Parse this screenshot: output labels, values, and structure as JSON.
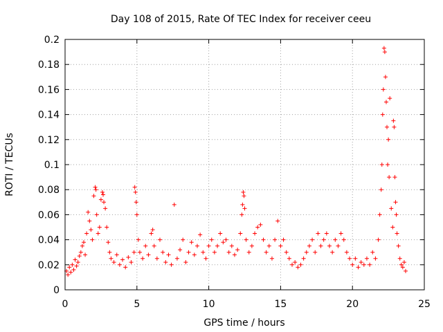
{
  "chart_data": {
    "type": "scatter",
    "title": "Day 108 of 2015, Rate Of TEC Index for receiver ceeu",
    "xlabel": "GPS time / hours",
    "ylabel": "ROTI / TECUs",
    "xlim": [
      0,
      25
    ],
    "ylim": [
      0,
      0.2
    ],
    "xticks": [
      0,
      5,
      10,
      15,
      20,
      25
    ],
    "yticks": [
      0,
      0.02,
      0.04,
      0.06,
      0.08,
      0.1,
      0.12,
      0.14,
      0.16,
      0.18,
      0.2
    ],
    "xtick_labels": [
      "0",
      "5",
      "10",
      "15",
      "20",
      "25"
    ],
    "ytick_labels": [
      "0",
      "0.02",
      "0.04",
      "0.06",
      "0.08",
      "0.1",
      "0.12",
      "0.14",
      "0.16",
      "0.18",
      "0.2"
    ],
    "grid": true,
    "marker": "+",
    "series_color": "#ff0000",
    "series": [
      {
        "name": "ROTI",
        "points": [
          [
            0.1,
            0.015
          ],
          [
            0.2,
            0.012
          ],
          [
            0.3,
            0.018
          ],
          [
            0.4,
            0.014
          ],
          [
            0.5,
            0.02
          ],
          [
            0.6,
            0.016
          ],
          [
            0.7,
            0.024
          ],
          [
            0.8,
            0.019
          ],
          [
            0.9,
            0.022
          ],
          [
            1.0,
            0.027
          ],
          [
            1.1,
            0.03
          ],
          [
            1.2,
            0.035
          ],
          [
            1.3,
            0.038
          ],
          [
            1.4,
            0.028
          ],
          [
            1.5,
            0.045
          ],
          [
            1.6,
            0.062
          ],
          [
            1.7,
            0.055
          ],
          [
            1.8,
            0.048
          ],
          [
            1.9,
            0.04
          ],
          [
            2.0,
            0.075
          ],
          [
            2.1,
            0.082
          ],
          [
            2.15,
            0.08
          ],
          [
            2.2,
            0.06
          ],
          [
            2.3,
            0.045
          ],
          [
            2.4,
            0.05
          ],
          [
            2.5,
            0.072
          ],
          [
            2.6,
            0.078
          ],
          [
            2.65,
            0.076
          ],
          [
            2.7,
            0.07
          ],
          [
            2.8,
            0.065
          ],
          [
            2.9,
            0.05
          ],
          [
            3.0,
            0.038
          ],
          [
            3.1,
            0.03
          ],
          [
            3.2,
            0.025
          ],
          [
            3.4,
            0.022
          ],
          [
            3.6,
            0.028
          ],
          [
            3.8,
            0.02
          ],
          [
            4.0,
            0.024
          ],
          [
            4.2,
            0.018
          ],
          [
            4.4,
            0.026
          ],
          [
            4.6,
            0.022
          ],
          [
            4.8,
            0.03
          ],
          [
            4.85,
            0.082
          ],
          [
            4.9,
            0.078
          ],
          [
            4.95,
            0.07
          ],
          [
            5.0,
            0.06
          ],
          [
            5.1,
            0.04
          ],
          [
            5.2,
            0.03
          ],
          [
            5.4,
            0.025
          ],
          [
            5.6,
            0.035
          ],
          [
            5.8,
            0.028
          ],
          [
            6.0,
            0.045
          ],
          [
            6.1,
            0.048
          ],
          [
            6.2,
            0.035
          ],
          [
            6.4,
            0.025
          ],
          [
            6.6,
            0.04
          ],
          [
            6.8,
            0.03
          ],
          [
            7.0,
            0.022
          ],
          [
            7.2,
            0.028
          ],
          [
            7.4,
            0.02
          ],
          [
            7.6,
            0.068
          ],
          [
            7.8,
            0.025
          ],
          [
            8.0,
            0.032
          ],
          [
            8.2,
            0.04
          ],
          [
            8.4,
            0.022
          ],
          [
            8.6,
            0.03
          ],
          [
            8.8,
            0.038
          ],
          [
            9.0,
            0.028
          ],
          [
            9.2,
            0.035
          ],
          [
            9.4,
            0.044
          ],
          [
            9.6,
            0.03
          ],
          [
            9.8,
            0.025
          ],
          [
            10.0,
            0.035
          ],
          [
            10.2,
            0.04
          ],
          [
            10.4,
            0.03
          ],
          [
            10.6,
            0.035
          ],
          [
            10.8,
            0.045
          ],
          [
            11.0,
            0.038
          ],
          [
            11.2,
            0.04
          ],
          [
            11.4,
            0.03
          ],
          [
            11.6,
            0.035
          ],
          [
            11.8,
            0.028
          ],
          [
            12.0,
            0.032
          ],
          [
            12.2,
            0.045
          ],
          [
            12.3,
            0.06
          ],
          [
            12.35,
            0.068
          ],
          [
            12.4,
            0.078
          ],
          [
            12.45,
            0.075
          ],
          [
            12.5,
            0.065
          ],
          [
            12.6,
            0.04
          ],
          [
            12.8,
            0.03
          ],
          [
            13.0,
            0.035
          ],
          [
            13.2,
            0.045
          ],
          [
            13.4,
            0.05
          ],
          [
            13.6,
            0.052
          ],
          [
            13.8,
            0.04
          ],
          [
            14.0,
            0.03
          ],
          [
            14.2,
            0.035
          ],
          [
            14.4,
            0.025
          ],
          [
            14.6,
            0.04
          ],
          [
            14.8,
            0.055
          ],
          [
            15.0,
            0.035
          ],
          [
            15.2,
            0.04
          ],
          [
            15.4,
            0.03
          ],
          [
            15.6,
            0.025
          ],
          [
            15.8,
            0.02
          ],
          [
            16.0,
            0.022
          ],
          [
            16.2,
            0.018
          ],
          [
            16.4,
            0.02
          ],
          [
            16.6,
            0.025
          ],
          [
            16.8,
            0.03
          ],
          [
            17.0,
            0.035
          ],
          [
            17.2,
            0.04
          ],
          [
            17.4,
            0.03
          ],
          [
            17.6,
            0.045
          ],
          [
            17.8,
            0.035
          ],
          [
            18.0,
            0.04
          ],
          [
            18.2,
            0.045
          ],
          [
            18.4,
            0.035
          ],
          [
            18.6,
            0.03
          ],
          [
            18.8,
            0.04
          ],
          [
            19.0,
            0.035
          ],
          [
            19.2,
            0.045
          ],
          [
            19.4,
            0.04
          ],
          [
            19.6,
            0.03
          ],
          [
            19.8,
            0.025
          ],
          [
            20.0,
            0.02
          ],
          [
            20.2,
            0.025
          ],
          [
            20.4,
            0.018
          ],
          [
            20.6,
            0.022
          ],
          [
            20.8,
            0.02
          ],
          [
            21.0,
            0.025
          ],
          [
            21.2,
            0.02
          ],
          [
            21.4,
            0.03
          ],
          [
            21.6,
            0.025
          ],
          [
            21.8,
            0.04
          ],
          [
            21.9,
            0.06
          ],
          [
            22.0,
            0.08
          ],
          [
            22.05,
            0.1
          ],
          [
            22.1,
            0.14
          ],
          [
            22.15,
            0.16
          ],
          [
            22.2,
            0.193
          ],
          [
            22.25,
            0.19
          ],
          [
            22.3,
            0.17
          ],
          [
            22.35,
            0.15
          ],
          [
            22.4,
            0.13
          ],
          [
            22.45,
            0.1
          ],
          [
            22.5,
            0.12
          ],
          [
            22.55,
            0.09
          ],
          [
            22.6,
            0.153
          ],
          [
            22.7,
            0.065
          ],
          [
            22.8,
            0.05
          ],
          [
            22.85,
            0.135
          ],
          [
            22.9,
            0.13
          ],
          [
            22.95,
            0.09
          ],
          [
            23.0,
            0.07
          ],
          [
            23.05,
            0.06
          ],
          [
            23.1,
            0.045
          ],
          [
            23.2,
            0.035
          ],
          [
            23.3,
            0.025
          ],
          [
            23.4,
            0.02
          ],
          [
            23.5,
            0.018
          ],
          [
            23.6,
            0.022
          ],
          [
            23.7,
            0.015
          ]
        ]
      }
    ]
  }
}
